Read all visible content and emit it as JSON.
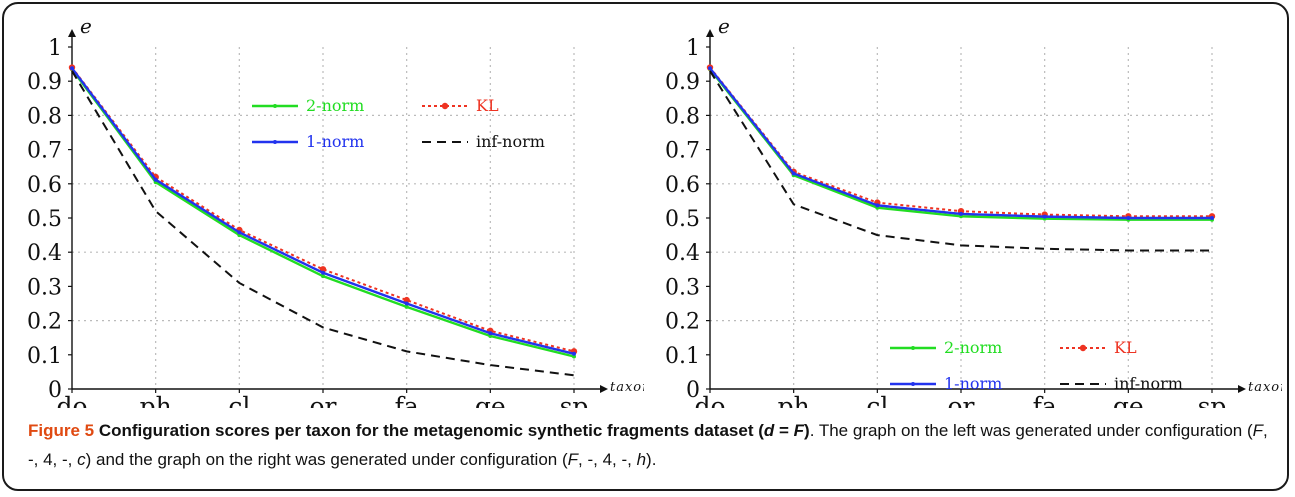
{
  "chart_data": [
    {
      "type": "line",
      "ylabel": "e",
      "xlabel": "taxon",
      "categories": [
        "do",
        "ph",
        "cl",
        "or",
        "fa",
        "ge",
        "sp"
      ],
      "yticks": [
        "0",
        "0.1",
        "0.2",
        "0.3",
        "0.4",
        "0.5",
        "0.6",
        "0.7",
        "0.8",
        "0.9",
        "1"
      ],
      "ylim": [
        0,
        1
      ],
      "grid": true,
      "legend_position": "top-center",
      "series": [
        {
          "name": "2-norm",
          "color": "#22dd22",
          "style": "solid",
          "values": [
            0.935,
            0.605,
            0.45,
            0.33,
            0.24,
            0.155,
            0.095
          ]
        },
        {
          "name": "KL",
          "color": "#ee3322",
          "style": "dotted",
          "values": [
            0.94,
            0.62,
            0.465,
            0.35,
            0.26,
            0.17,
            0.11
          ]
        },
        {
          "name": "1-norm",
          "color": "#2233ee",
          "style": "solid",
          "values": [
            0.938,
            0.612,
            0.458,
            0.34,
            0.25,
            0.163,
            0.103
          ]
        },
        {
          "name": "inf-norm",
          "color": "#111111",
          "style": "dashed",
          "values": [
            0.93,
            0.52,
            0.31,
            0.18,
            0.11,
            0.07,
            0.04
          ]
        }
      ]
    },
    {
      "type": "line",
      "ylabel": "e",
      "xlabel": "taxon",
      "categories": [
        "do",
        "ph",
        "cl",
        "or",
        "fa",
        "ge",
        "sp"
      ],
      "yticks": [
        "0",
        "0.1",
        "0.2",
        "0.3",
        "0.4",
        "0.5",
        "0.6",
        "0.7",
        "0.8",
        "0.9",
        "1"
      ],
      "ylim": [
        0,
        1
      ],
      "grid": true,
      "legend_position": "bottom-center",
      "series": [
        {
          "name": "2-norm",
          "color": "#22dd22",
          "style": "solid",
          "values": [
            0.935,
            0.625,
            0.53,
            0.505,
            0.498,
            0.495,
            0.495
          ]
        },
        {
          "name": "KL",
          "color": "#ee3322",
          "style": "dotted",
          "values": [
            0.94,
            0.635,
            0.545,
            0.52,
            0.51,
            0.505,
            0.505
          ]
        },
        {
          "name": "1-norm",
          "color": "#2233ee",
          "style": "solid",
          "values": [
            0.938,
            0.63,
            0.537,
            0.512,
            0.504,
            0.5,
            0.5
          ]
        },
        {
          "name": "inf-norm",
          "color": "#111111",
          "style": "dashed",
          "values": [
            0.93,
            0.54,
            0.45,
            0.42,
            0.41,
            0.405,
            0.405
          ]
        }
      ]
    }
  ],
  "caption": {
    "label": "Figure 5",
    "title_bold": " Configuration scores per taxon for the metagenomic synthetic fragments dataset (",
    "var_d": "d",
    "eq": " = ",
    "var_F": "F",
    "close_bold": ")",
    "text_1": ". The graph on the left was generated under configuration (",
    "cfg1_F": "F",
    "cfg1_mid": ", -, 4, -, ",
    "cfg1_c": "c",
    "text_2": ") and the graph on the right was generated under configuration (",
    "cfg2_F": "F",
    "cfg2_mid": ", -, 4, -, ",
    "cfg2_h": "h",
    "text_3": ")."
  }
}
